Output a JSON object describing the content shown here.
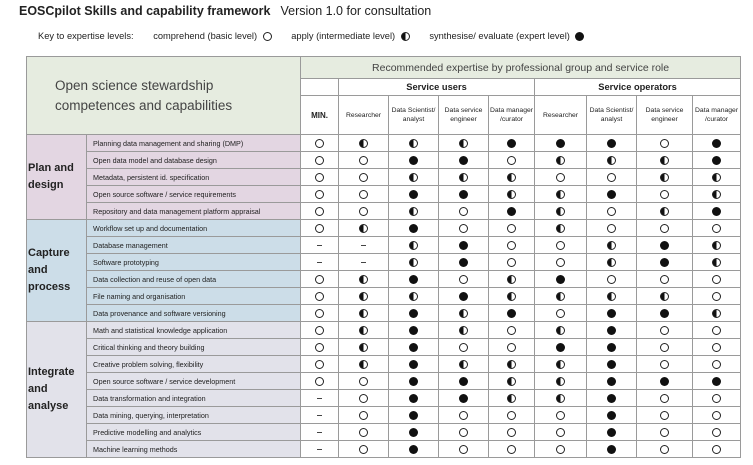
{
  "header": {
    "title_bold": "EOSCpilot Skills and capability framework",
    "version": "Version 1.0 for consultation"
  },
  "key": {
    "label": "Key to expertise levels:",
    "comprehend": "comprehend (basic level)",
    "apply": "apply (intermediate level)",
    "synthesise": "synthesise/ evaluate (expert level)"
  },
  "table": {
    "title_line1": "Open science stewardship",
    "title_line2": "competences and capabilities",
    "recommended": "Recommended expertise by professional group and service role",
    "group_users": "Service users",
    "group_operators": "Service operators",
    "columns": [
      "MIN.",
      "Researcher",
      "Data Scientist/ analyst",
      "Data service engineer",
      "Data manager /curator",
      "Researcher",
      "Data Scientist/ analyst",
      "Data service engineer",
      "Data manager /curator"
    ],
    "categories": [
      {
        "name": "Plan and design",
        "rows": [
          {
            "skill": "Planning data management and sharing (DMP)",
            "levels": [
              "c",
              "h",
              "h",
              "h",
              "f",
              "f",
              "f",
              "c",
              "f"
            ]
          },
          {
            "skill": "Open data model and database design",
            "levels": [
              "c",
              "c",
              "f",
              "f",
              "c",
              "h",
              "h",
              "h",
              "f"
            ]
          },
          {
            "skill": "Metadata, persistent id. specification",
            "levels": [
              "c",
              "c",
              "h",
              "h",
              "h",
              "c",
              "c",
              "h",
              "h"
            ]
          },
          {
            "skill": "Open source software / service requirements",
            "levels": [
              "c",
              "c",
              "f",
              "f",
              "h",
              "h",
              "f",
              "c",
              "h"
            ]
          },
          {
            "skill": "Repository and data management platform appraisal",
            "levels": [
              "c",
              "c",
              "h",
              "c",
              "f",
              "h",
              "c",
              "h",
              "f"
            ]
          }
        ]
      },
      {
        "name": "Capture and process",
        "rows": [
          {
            "skill": "Workflow set up and documentation",
            "levels": [
              "c",
              "h",
              "f",
              "c",
              "c",
              "h",
              "c",
              "c",
              "c"
            ]
          },
          {
            "skill": "Database management",
            "levels": [
              "-",
              "-",
              "h",
              "f",
              "c",
              "c",
              "h",
              "f",
              "h"
            ]
          },
          {
            "skill": "Software prototyping",
            "levels": [
              "-",
              "-",
              "h",
              "f",
              "c",
              "c",
              "h",
              "f",
              "h"
            ]
          },
          {
            "skill": "Data collection and reuse of open data",
            "levels": [
              "c",
              "h",
              "f",
              "c",
              "h",
              "f",
              "c",
              "c",
              "c"
            ]
          },
          {
            "skill": "File naming and organisation",
            "levels": [
              "c",
              "h",
              "h",
              "f",
              "h",
              "h",
              "h",
              "h",
              "c"
            ]
          },
          {
            "skill": "Data provenance and software versioning",
            "levels": [
              "c",
              "h",
              "f",
              "h",
              "f",
              "c",
              "f",
              "f",
              "h"
            ]
          }
        ]
      },
      {
        "name": "Integrate and analyse",
        "rows": [
          {
            "skill": "Math and statistical knowledge application",
            "levels": [
              "c",
              "h",
              "f",
              "h",
              "c",
              "h",
              "f",
              "c",
              "c"
            ]
          },
          {
            "skill": "Critical thinking and theory building",
            "levels": [
              "c",
              "h",
              "f",
              "c",
              "c",
              "f",
              "f",
              "c",
              "c"
            ]
          },
          {
            "skill": "Creative problem solving, flexibility",
            "levels": [
              "c",
              "h",
              "f",
              "h",
              "h",
              "h",
              "f",
              "c",
              "c"
            ]
          },
          {
            "skill": "Open source software / service development",
            "levels": [
              "c",
              "c",
              "f",
              "f",
              "h",
              "h",
              "f",
              "f",
              "f"
            ]
          },
          {
            "skill": "Data transformation and integration",
            "levels": [
              "-",
              "c",
              "f",
              "f",
              "h",
              "h",
              "f",
              "c",
              "c"
            ]
          },
          {
            "skill": "Data mining, querying, interpretation",
            "levels": [
              "-",
              "c",
              "f",
              "c",
              "c",
              "c",
              "f",
              "c",
              "c"
            ]
          },
          {
            "skill": "Predictive modelling and analytics",
            "levels": [
              "-",
              "c",
              "f",
              "c",
              "c",
              "c",
              "f",
              "c",
              "c"
            ]
          },
          {
            "skill": "Machine learning methods",
            "levels": [
              "-",
              "c",
              "f",
              "c",
              "c",
              "c",
              "f",
              "c",
              "c"
            ]
          }
        ]
      }
    ]
  }
}
